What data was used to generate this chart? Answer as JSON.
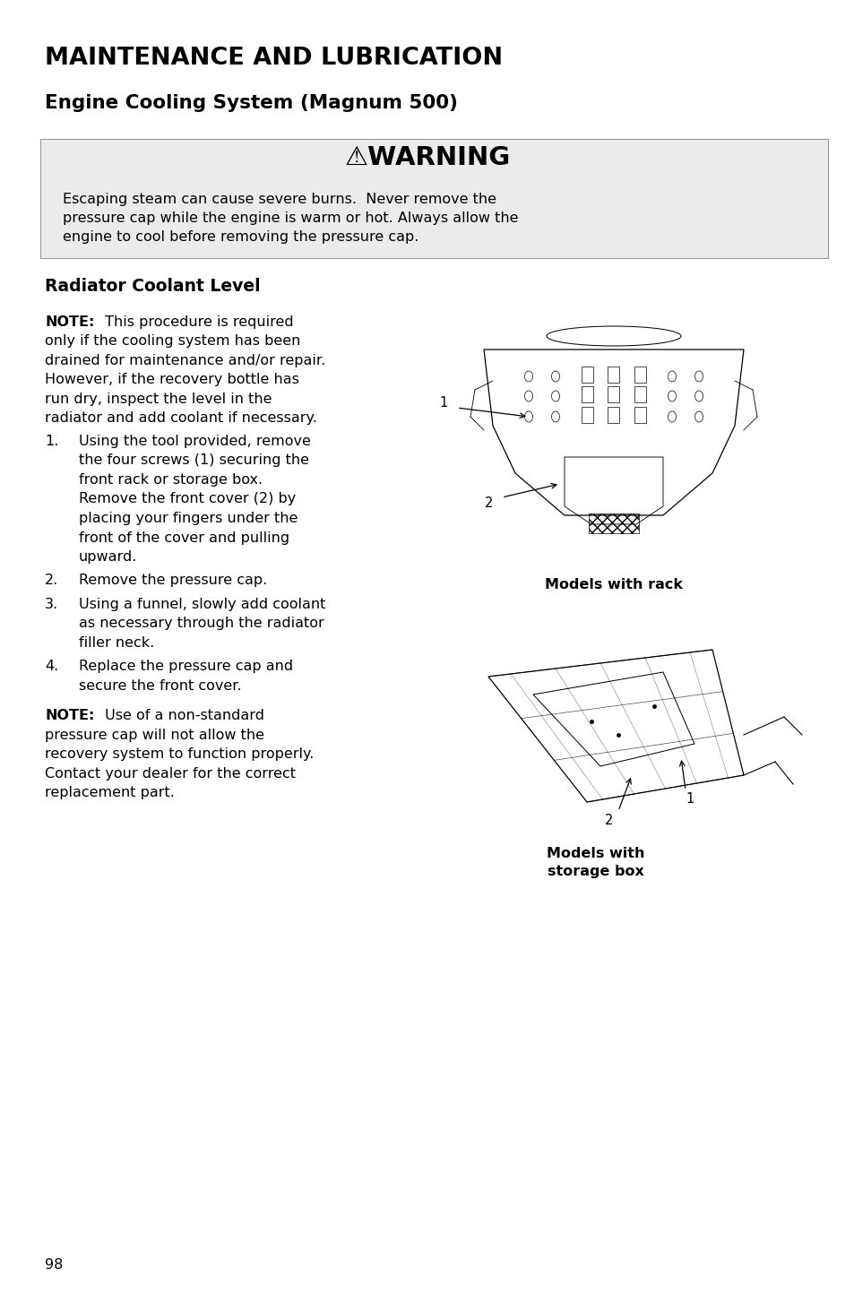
{
  "title_line1": "MAINTENANCE AND LUBRICATION",
  "title_line2": "Engine Cooling System (Magnum 500)",
  "warning_title": "⚠WARNING",
  "warning_text": "Escaping steam can cause severe burns.  Never remove the\npressure cap while the engine is warm or hot. Always allow the\nengine to cool before removing the pressure cap.",
  "section_title": "Radiator Coolant Level",
  "note1_bold": "NOTE:",
  "note1_text": " This procedure is required\nonly if the cooling system has been\ndrained for maintenance and/or repair.\nHowever, if the recovery bottle has\nrun dry, inspect the level in the\nradiator and add coolant if necessary.",
  "steps": [
    "Using the tool provided, remove\nthe four screws (1) securing the\nfront rack or storage box.\nRemove the front cover (2) by\nplacing your fingers under the\nfront of the cover and pulling\nupward.",
    "Remove the pressure cap.",
    "Using a funnel, slowly add coolant\nas necessary through the radiator\nfiller neck.",
    "Replace the pressure cap and\nsecure the front cover."
  ],
  "note2_bold": "NOTE:",
  "note2_text": " Use of a non-standard\npressure cap will not allow the\nrecovery system to function properly.\nContact your dealer for the correct\nreplacement part.",
  "caption1": "Models with rack",
  "caption2": "Models with\nstorage box",
  "page_number": "98",
  "bg_color": "#ffffff",
  "warning_bg": "#ebebeb",
  "text_color": "#000000",
  "page_width": 9.54,
  "page_height": 14.54
}
